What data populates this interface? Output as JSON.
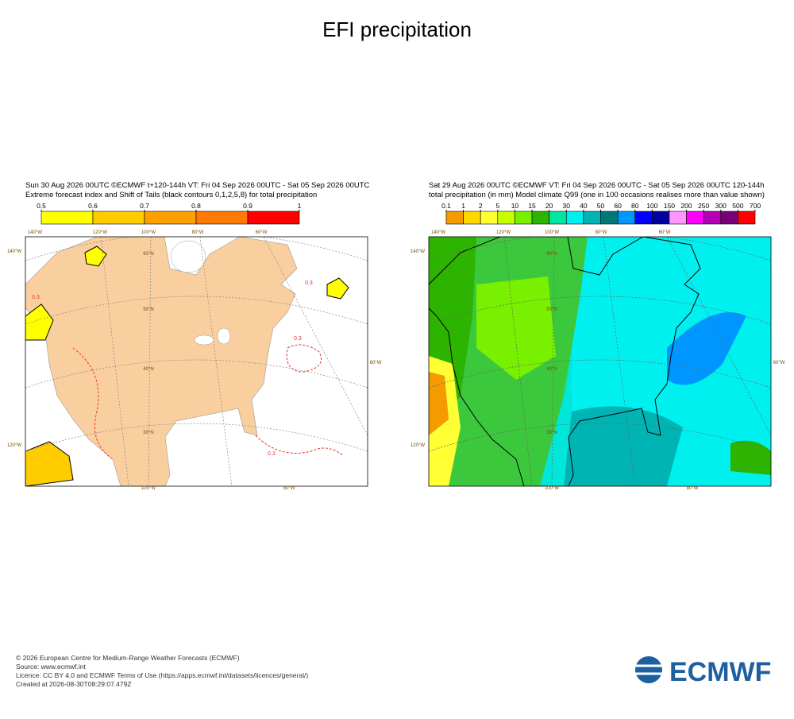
{
  "title": "EFI precipitation",
  "panels": [
    {
      "header": [
        "Sun 30 Aug 2026 00UTC ©ECMWF t+120-144h  VT: Fri 04 Sep 2026 00UTC - Sat 05 Sep 2026 00UTC",
        "Extreme forecast index and Shift of Tails (black contours 0,1,2,5,8) for total precipitation"
      ],
      "colorbar": {
        "ticks": [
          0.5,
          0.6,
          0.7,
          0.8,
          0.9,
          1
        ],
        "colors": [
          "#ffff00",
          "#ffcc00",
          "#ffa000",
          "#ff7a00",
          "#ff0000"
        ]
      },
      "grid_labels": [
        "140°W",
        "120°W",
        "100°W",
        "80°W",
        "60°W",
        "60°N",
        "50°N",
        "40°N",
        "30°N",
        "140°W",
        "120°W",
        "60°W",
        "100°W",
        "80°W"
      ],
      "contour_labels": [
        "0.3",
        "0.3",
        "0.3",
        "0.3"
      ]
    },
    {
      "header": [
        "Sat 29 Aug 2026 00UTC ©ECMWF VT: Fri 04 Sep 2026 00UTC - Sat 05 Sep 2026 00UTC   120-144h",
        "total precipitation (in mm)  Model climate Q99 (one in 100 occasions realises more than value shown)"
      ],
      "colorbar": {
        "ticks": [
          0.1,
          1,
          2,
          5,
          10,
          15,
          20,
          30,
          40,
          50,
          60,
          80,
          100,
          150,
          200,
          250,
          300,
          500,
          700
        ],
        "colors": [
          "#f59a00",
          "#ffd700",
          "#ffff33",
          "#c8ff00",
          "#78f000",
          "#2db400",
          "#00e6a0",
          "#00f0f0",
          "#00b4b4",
          "#007878",
          "#0096ff",
          "#0000ff",
          "#0000a0",
          "#ff96ff",
          "#ff00ff",
          "#b400b4",
          "#780078",
          "#ff0000"
        ]
      },
      "grid_labels": [
        "140°W",
        "120°W",
        "100°W",
        "80°W",
        "60°W",
        "60°N",
        "50°N",
        "40°N",
        "30°N",
        "140°W",
        "120°W",
        "60°W",
        "100°W",
        "80°W"
      ]
    }
  ],
  "footer": [
    "© 2026 European Centre for Medium-Range Weather Forecasts (ECMWF)",
    "Source: www.ecmwf.int",
    "Licence: CC BY 4.0 and ECMWF Terms of Use (https://apps.ecmwf.int/datasets/licences/general/)",
    "Created at 2026-08-30T08:29:07.479Z"
  ],
  "logo": "ECMWF"
}
